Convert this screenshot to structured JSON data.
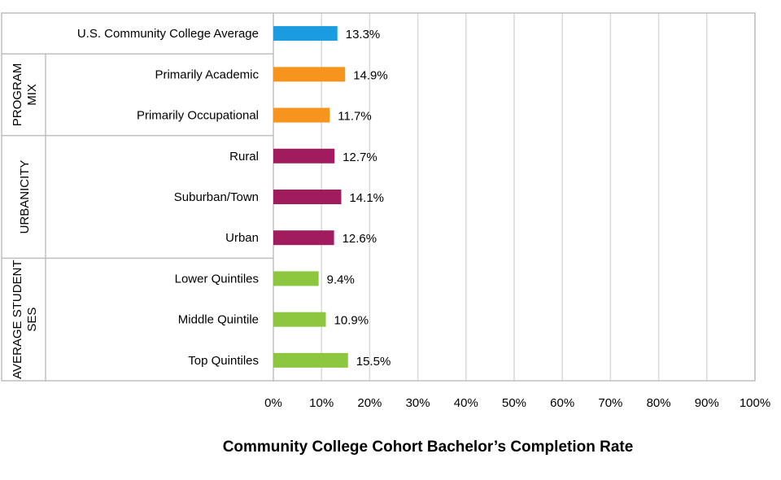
{
  "chart_data": {
    "type": "bar",
    "orientation": "horizontal",
    "xlabel": "Community College Cohort Bachelor’s Completion Rate",
    "xlim": [
      0,
      100
    ],
    "xticks": [
      0,
      10,
      20,
      30,
      40,
      50,
      60,
      70,
      80,
      90,
      100
    ],
    "tick_suffix": "%",
    "grid": true,
    "legend": "none",
    "categories": [
      "U.S. Community College Average",
      "Primarily Academic",
      "Primarily Occupational",
      "Rural",
      "Suburban/Town",
      "Urban",
      "Lower Quintiles",
      "Middle Quintile",
      "Top Quintiles"
    ],
    "values": [
      13.3,
      14.9,
      11.7,
      12.7,
      14.1,
      12.6,
      9.4,
      10.9,
      15.5
    ],
    "value_labels": [
      "13.3%",
      "14.9%",
      "11.7%",
      "12.7%",
      "14.1%",
      "12.6%",
      "9.4%",
      "10.9%",
      "15.5%"
    ],
    "colors": [
      "#1B9BE0",
      "#F7941D",
      "#F7941D",
      "#A01C5E",
      "#A01C5E",
      "#A01C5E",
      "#8DC63F",
      "#8DC63F",
      "#8DC63F"
    ],
    "groups": [
      {
        "label_lines": [
          "PROGRAM",
          "MIX"
        ],
        "start": 1,
        "end": 2
      },
      {
        "label_lines": [
          "URBANICITY"
        ],
        "start": 3,
        "end": 5
      },
      {
        "label_lines": [
          "AVERAGE STUDENT",
          "SES"
        ],
        "start": 6,
        "end": 8
      }
    ]
  }
}
